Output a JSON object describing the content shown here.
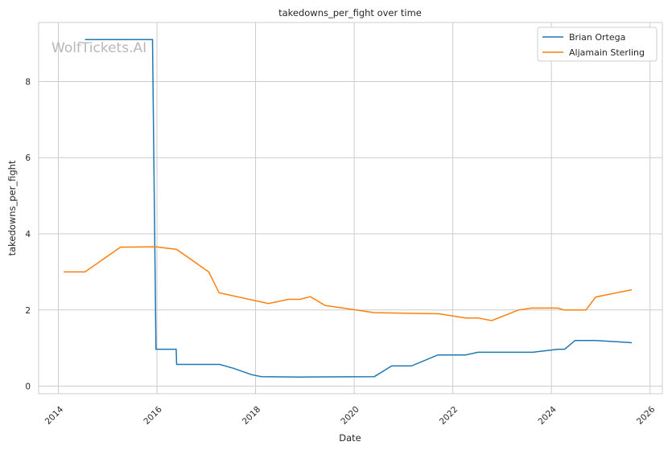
{
  "chart_data": {
    "type": "line",
    "title": "takedowns_per_fight over time",
    "xlabel": "Date",
    "ylabel": "takedowns_per_fight",
    "xlim": [
      2013.6,
      2026.25
    ],
    "ylim": [
      -0.2,
      9.55
    ],
    "xticks": [
      2014,
      2016,
      2018,
      2020,
      2022,
      2024,
      2026
    ],
    "xtick_labels": [
      "2014",
      "2016",
      "2018",
      "2020",
      "2022",
      "2024",
      "2026"
    ],
    "yticks": [
      0,
      2,
      4,
      6,
      8
    ],
    "ytick_labels": [
      "0",
      "2",
      "4",
      "6",
      "8"
    ],
    "grid": true,
    "legend_position": "top-right",
    "watermark": "WolfTickets.AI",
    "series": [
      {
        "name": "Brian Ortega",
        "color": "#1f77b4",
        "x": [
          2014.54,
          2015.91,
          2015.98,
          2016.39,
          2016.4,
          2017.27,
          2017.55,
          2017.92,
          2018.12,
          2018.91,
          2020.41,
          2020.76,
          2021.16,
          2021.7,
          2022.26,
          2022.51,
          2023.62,
          2024.14,
          2024.27,
          2024.48,
          2024.9,
          2025.63
        ],
        "y": [
          9.1,
          9.1,
          0.97,
          0.97,
          0.57,
          0.57,
          0.47,
          0.3,
          0.25,
          0.24,
          0.25,
          0.53,
          0.53,
          0.82,
          0.82,
          0.89,
          0.89,
          0.97,
          0.97,
          1.2,
          1.2,
          1.14
        ]
      },
      {
        "name": "Aljamain Sterling",
        "color": "#ff7f0e",
        "x": [
          2014.11,
          2014.54,
          2015.26,
          2015.97,
          2016.4,
          2017.05,
          2017.26,
          2018.26,
          2018.67,
          2018.9,
          2019.11,
          2019.41,
          2020.41,
          2021.72,
          2022.26,
          2022.51,
          2022.79,
          2023.33,
          2023.6,
          2024.13,
          2024.26,
          2024.7,
          2024.9,
          2025.63
        ],
        "y": [
          3.0,
          3.0,
          3.65,
          3.66,
          3.59,
          3.0,
          2.45,
          2.17,
          2.28,
          2.28,
          2.35,
          2.12,
          1.93,
          1.9,
          1.79,
          1.79,
          1.72,
          2.0,
          2.05,
          2.05,
          2.0,
          2.0,
          2.34,
          2.53
        ]
      }
    ]
  }
}
